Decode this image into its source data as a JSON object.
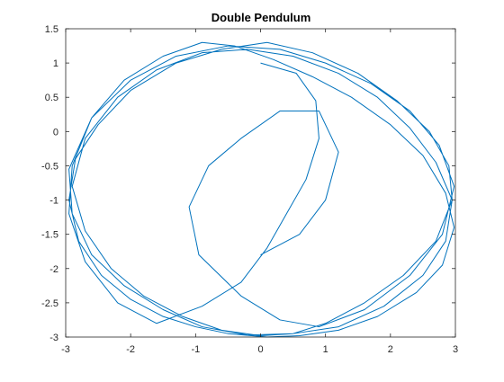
{
  "chart_data": {
    "type": "line",
    "title": "Double Pendulum",
    "xlabel": "",
    "ylabel": "",
    "xlim": [
      -3,
      3
    ],
    "ylim": [
      -3,
      1.5
    ],
    "x_ticks": [
      -3,
      -2,
      -1,
      0,
      1,
      2,
      3
    ],
    "x_tick_labels": [
      "-3",
      "-2",
      "-1",
      "0",
      "1",
      "2",
      "3"
    ],
    "y_ticks": [
      -3,
      -2.5,
      -2,
      -1.5,
      -1,
      -0.5,
      0,
      0.5,
      1,
      1.5
    ],
    "y_tick_labels": [
      "-3",
      "-2.5",
      "-2",
      "-1.5",
      "-1",
      "-0.5",
      "0",
      "0.5",
      "1",
      "1.5"
    ],
    "grid": false,
    "legend": "none",
    "colors": {
      "series": "#0072BD",
      "axes": "#262626",
      "background": "#ffffff"
    },
    "series": [
      {
        "description_of_values": "trajectory of the second pendulum bob (x, y), sampled along the path",
        "x": [
          0.0,
          0.55,
          0.85,
          0.9,
          0.7,
          0.4,
          0.1,
          -0.3,
          -0.9,
          -1.6,
          -2.2,
          -2.7,
          -2.95,
          -2.9,
          -2.6,
          -2.1,
          -1.5,
          -0.9,
          -0.4,
          0.2,
          0.8,
          1.4,
          2.0,
          2.5,
          2.85,
          2.98,
          2.8,
          2.4,
          1.8,
          1.2,
          0.6,
          0.1,
          -0.5,
          -1.0,
          -1.5,
          -2.0,
          -2.45,
          -2.8,
          -2.95,
          -2.85,
          -2.5,
          -2.0,
          -1.3,
          -0.6,
          0.1,
          0.8,
          1.5,
          2.1,
          2.6,
          2.9,
          2.95,
          2.7,
          2.2,
          1.6,
          1.0,
          0.5,
          0.0,
          -0.6,
          -1.2,
          -1.8,
          -2.3,
          -2.7,
          -2.9,
          -2.7,
          -2.2,
          -1.6,
          -0.9,
          -0.2,
          0.5,
          1.2,
          1.8,
          2.3,
          2.7,
          2.95,
          2.85,
          2.5,
          1.9,
          1.2,
          0.5,
          -0.2,
          -0.9,
          -1.5,
          -2.1,
          -2.6,
          -2.9,
          -2.95,
          -2.6,
          -2.0,
          -1.3,
          -0.5,
          0.3,
          1.0,
          1.7,
          2.3,
          2.75,
          2.98,
          2.8,
          2.3,
          1.6,
          0.9,
          0.3,
          -0.3,
          -0.95,
          -1.1,
          -0.8,
          -0.3,
          0.3,
          0.9,
          1.2,
          1.0,
          0.6,
          0.0
        ],
        "y": [
          1.0,
          0.85,
          0.45,
          -0.1,
          -0.7,
          -1.2,
          -1.7,
          -2.2,
          -2.55,
          -2.8,
          -2.5,
          -1.9,
          -1.2,
          -0.5,
          0.2,
          0.75,
          1.1,
          1.3,
          1.25,
          1.05,
          0.8,
          0.5,
          0.1,
          -0.35,
          -0.9,
          -1.4,
          -1.95,
          -2.35,
          -2.7,
          -2.9,
          -2.98,
          -3.0,
          -2.95,
          -2.85,
          -2.7,
          -2.45,
          -2.1,
          -1.6,
          -1.0,
          -0.4,
          0.1,
          0.6,
          1.0,
          1.2,
          1.3,
          1.15,
          0.85,
          0.45,
          0.0,
          -0.5,
          -1.0,
          -1.6,
          -2.1,
          -2.5,
          -2.8,
          -2.95,
          -2.98,
          -2.9,
          -2.7,
          -2.4,
          -2.0,
          -1.45,
          -0.8,
          -0.1,
          0.5,
          0.9,
          1.15,
          1.2,
          1.1,
          0.85,
          0.5,
          0.05,
          -0.45,
          -1.0,
          -1.6,
          -2.1,
          -2.55,
          -2.85,
          -2.95,
          -2.97,
          -2.85,
          -2.6,
          -2.25,
          -1.8,
          -1.2,
          -0.55,
          0.2,
          0.75,
          1.1,
          1.25,
          1.2,
          1.0,
          0.7,
          0.3,
          -0.2,
          -0.8,
          -1.5,
          -2.1,
          -2.6,
          -2.85,
          -2.75,
          -2.4,
          -1.8,
          -1.1,
          -0.5,
          -0.1,
          0.3,
          0.3,
          -0.3,
          -1.0,
          -1.5,
          -1.8
        ]
      }
    ]
  }
}
